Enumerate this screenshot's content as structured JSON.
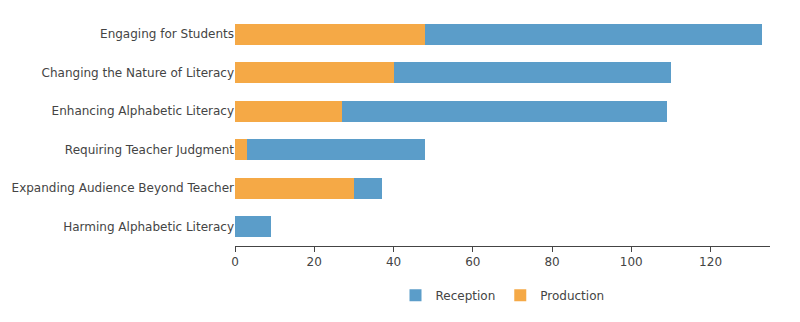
{
  "chart_data": {
    "type": "bar",
    "orientation": "horizontal",
    "stacked": true,
    "categories": [
      "Harming Alphabetic Literacy",
      "Expanding Audience Beyond Teacher",
      "Requiring Teacher Judgment",
      "Enhancing Alphabetic Literacy",
      "Changing the Nature of Literacy",
      "Engaging for Students"
    ],
    "series": [
      {
        "name": "Production",
        "color": "#F5A946",
        "values": [
          0,
          30,
          3,
          27,
          40,
          48
        ]
      },
      {
        "name": "Reception",
        "color": "#5B9DC9",
        "values": [
          9,
          7,
          45,
          82,
          70,
          85
        ]
      }
    ],
    "xlim": [
      0,
      135
    ],
    "xticks": [
      0,
      20,
      40,
      60,
      80,
      100,
      120
    ],
    "grid": false,
    "legend": "bottom"
  }
}
